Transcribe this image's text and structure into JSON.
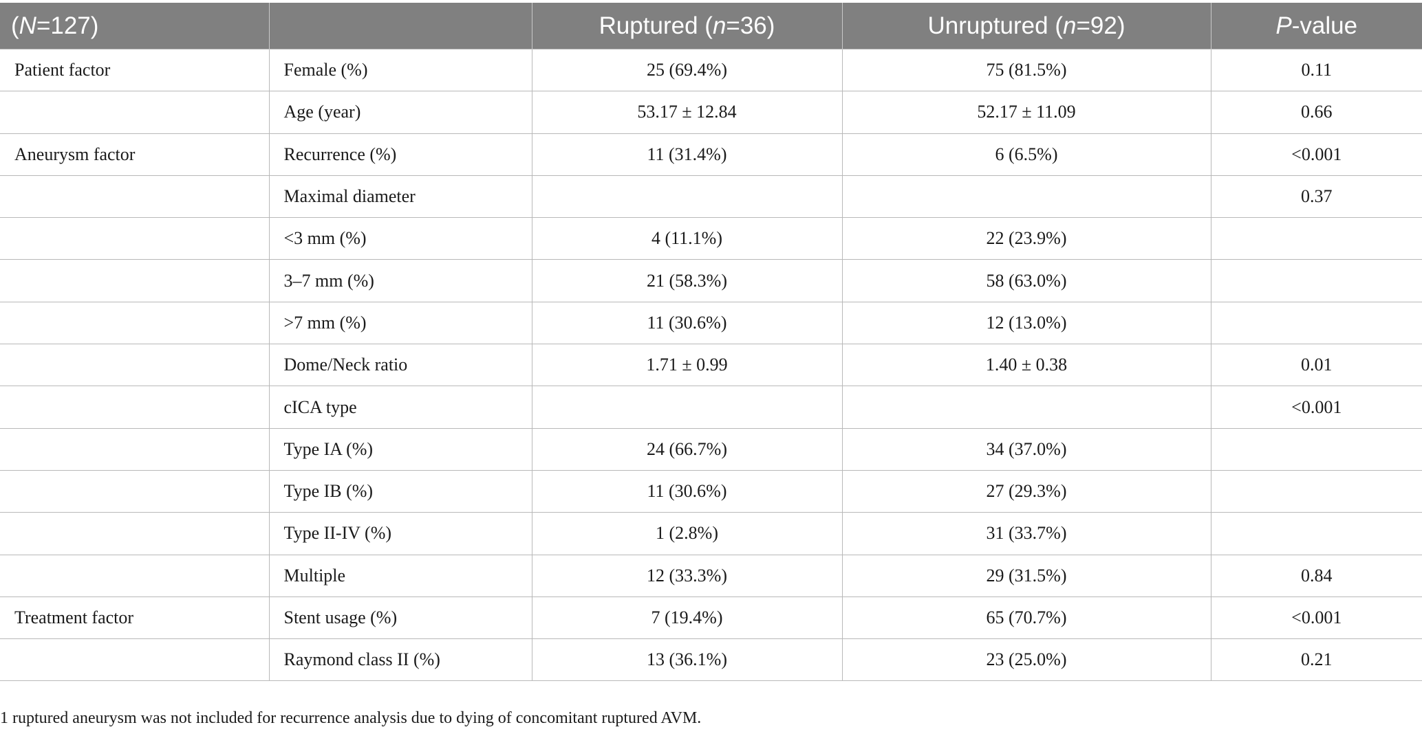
{
  "header": {
    "col0_pre": "(",
    "col0_var": "N",
    "col0_post": "=127)",
    "col1": "",
    "col2_pre": "Ruptured (",
    "col2_var": "n",
    "col2_post": "=36)",
    "col3_pre": "Unruptured (",
    "col3_var": "n",
    "col3_post": "=92)",
    "col4_var": "P",
    "col4_post": "-value"
  },
  "rows": [
    {
      "group": "Patient factor",
      "variable": "Female (%)",
      "ruptured": "25 (69.4%)",
      "unruptured": "75 (81.5%)",
      "p": "0.11"
    },
    {
      "group": "",
      "variable": "Age (year)",
      "ruptured": "53.17 ± 12.84",
      "unruptured": "52.17 ± 11.09",
      "p": "0.66"
    },
    {
      "group": "Aneurysm factor",
      "variable": "Recurrence (%)",
      "ruptured": "11 (31.4%)",
      "unruptured": "6 (6.5%)",
      "p": "<0.001"
    },
    {
      "group": "",
      "variable": "Maximal diameter",
      "ruptured": "",
      "unruptured": "",
      "p": "0.37"
    },
    {
      "group": "",
      "variable": "<3 mm (%)",
      "ruptured": "4 (11.1%)",
      "unruptured": "22 (23.9%)",
      "p": ""
    },
    {
      "group": "",
      "variable": "3–7 mm (%)",
      "ruptured": "21 (58.3%)",
      "unruptured": "58 (63.0%)",
      "p": ""
    },
    {
      "group": "",
      "variable": ">7 mm (%)",
      "ruptured": "11 (30.6%)",
      "unruptured": "12 (13.0%)",
      "p": ""
    },
    {
      "group": "",
      "variable": "Dome/Neck ratio",
      "ruptured": "1.71 ± 0.99",
      "unruptured": "1.40 ± 0.38",
      "p": "0.01"
    },
    {
      "group": "",
      "variable": "cICA type",
      "ruptured": "",
      "unruptured": "",
      "p": "<0.001"
    },
    {
      "group": "",
      "variable": "Type IA (%)",
      "ruptured": "24 (66.7%)",
      "unruptured": "34 (37.0%)",
      "p": ""
    },
    {
      "group": "",
      "variable": "Type IB (%)",
      "ruptured": "11 (30.6%)",
      "unruptured": "27 (29.3%)",
      "p": ""
    },
    {
      "group": "",
      "variable": "Type II-IV (%)",
      "ruptured": "1 (2.8%)",
      "unruptured": "31 (33.7%)",
      "p": ""
    },
    {
      "group": "",
      "variable": "Multiple",
      "ruptured": "12 (33.3%)",
      "unruptured": "29 (31.5%)",
      "p": "0.84"
    },
    {
      "group": "Treatment factor",
      "variable": "Stent usage (%)",
      "ruptured": "7 (19.4%)",
      "unruptured": "65 (70.7%)",
      "p": "<0.001"
    },
    {
      "group": "",
      "variable": "Raymond class II (%)",
      "ruptured": "13 (36.1%)",
      "unruptured": "23 (25.0%)",
      "p": "0.21"
    }
  ],
  "footnote": "1 ruptured aneurysm was not included for recurrence analysis due to dying of concomitant ruptured AVM."
}
